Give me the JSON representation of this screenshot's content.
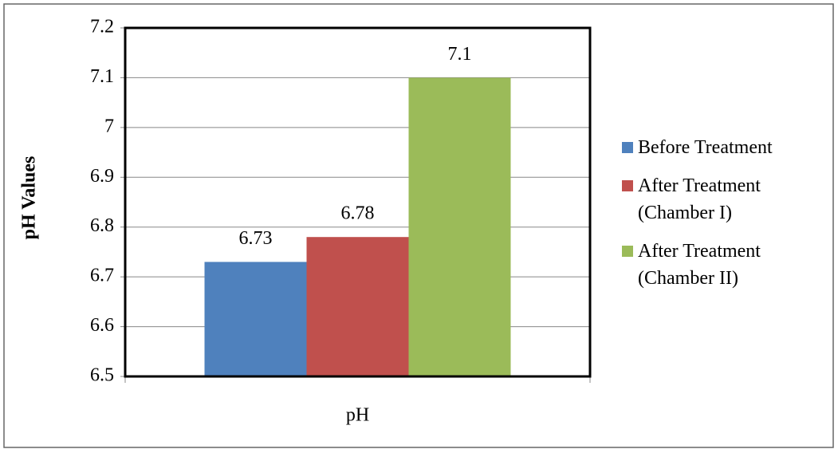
{
  "chart_data": {
    "type": "bar",
    "y_label": "pH Values",
    "categories": [
      "pH"
    ],
    "series": [
      {
        "name": "Before Treatment",
        "color": "#4f81bd",
        "values": [
          6.73
        ]
      },
      {
        "name": "After Treatment (Chamber I)",
        "color": "#c0504d",
        "values": [
          6.78
        ]
      },
      {
        "name": "After Treatment (Chamber II)",
        "color": "#9bbb59",
        "values": [
          7.1
        ]
      }
    ],
    "ylim": [
      6.5,
      7.2
    ],
    "yticks": [
      6.5,
      6.6,
      6.7,
      6.8,
      6.9,
      7,
      7.1,
      7.2
    ],
    "grid": true
  }
}
